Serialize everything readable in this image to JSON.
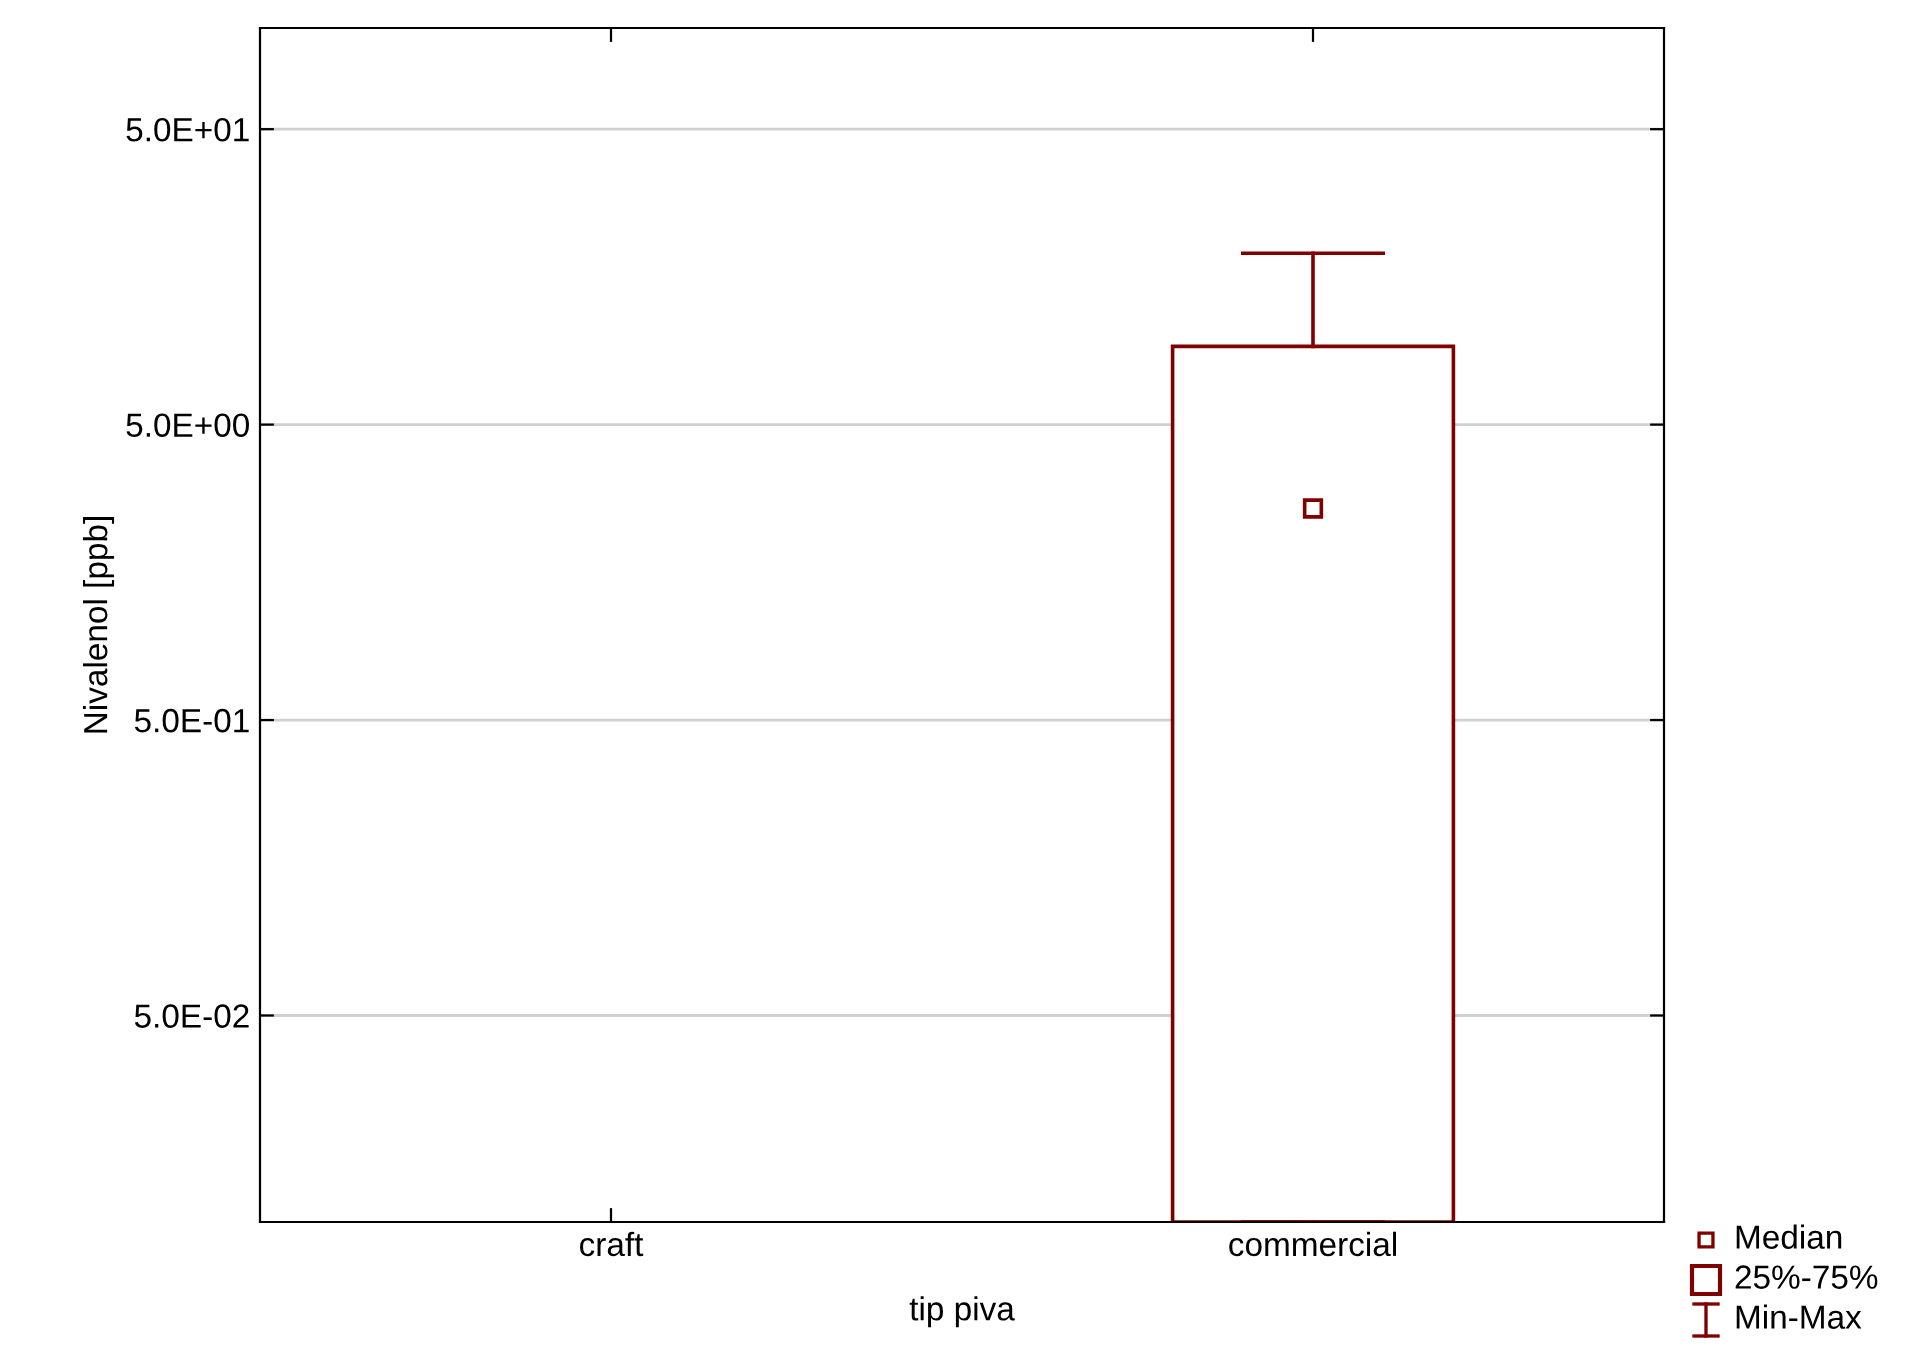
{
  "chart_data": {
    "type": "box",
    "xlabel": "tip piva",
    "ylabel": "Nivalenol [ppb]",
    "categories": [
      "craft",
      "commercial"
    ],
    "boxes": [
      null,
      {
        "low": 0.01,
        "q1": 0.01,
        "median": 2.6,
        "q3": 9.2,
        "high": 19
      }
    ],
    "color": "#800000",
    "log": "y",
    "ylim": [
      0.01,
      110
    ],
    "yticks": [
      {
        "value": 50,
        "label": "5.0E+01"
      },
      {
        "value": 5,
        "label": "5.0E+00"
      },
      {
        "value": 0.5,
        "label": "5.0E-01"
      },
      {
        "value": 0.05,
        "label": "5.0E-02"
      }
    ],
    "grid": "y",
    "marker": "square",
    "annotations": [
      "Median",
      "25%-75%",
      "Min-Max"
    ]
  }
}
